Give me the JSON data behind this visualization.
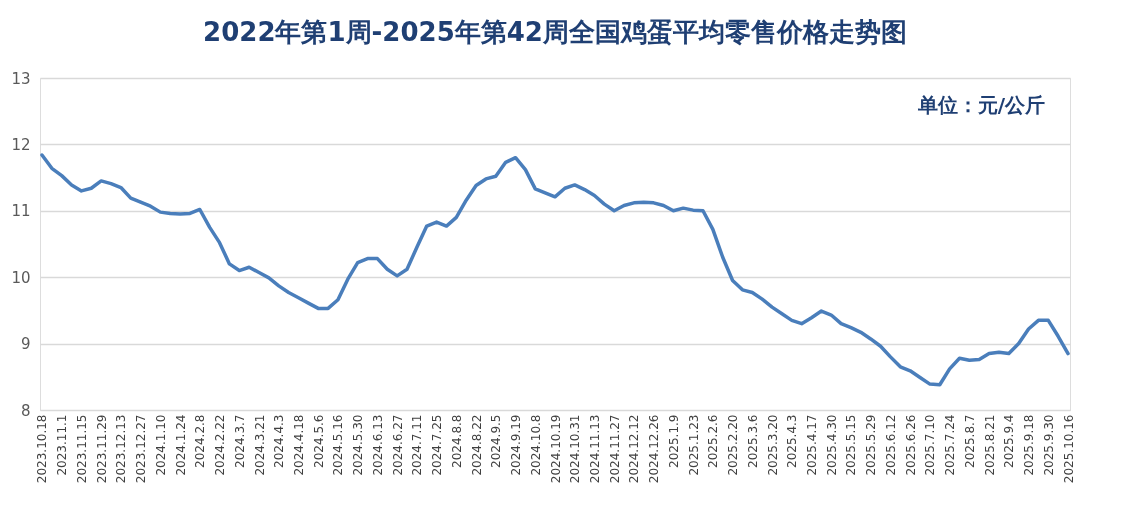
{
  "chart_data": {
    "type": "line",
    "title": "2022年第1周-2025年第42周全国鸡蛋平均零售价格走势图",
    "categories": [
      "2023.10.18",
      null,
      "2023.11.1",
      null,
      "2023.11.15",
      null,
      "2023.11.29",
      null,
      "2023.12.13",
      null,
      "2023.12.27",
      null,
      "2024.1.10",
      null,
      "2024.1.24",
      null,
      "2024.2.8",
      null,
      "2024.2.22",
      null,
      "2024.3.7",
      null,
      "2024.3.21",
      null,
      "2024.4.3",
      null,
      "2024.4.18",
      null,
      "2024.5.6",
      null,
      "2024.5.16",
      null,
      "2024.5.30",
      null,
      "2024.6.13",
      null,
      "2024.6.27",
      null,
      "2024.7.11",
      null,
      "2024.7.25",
      null,
      "2024.8.8",
      null,
      "2024.8.22",
      null,
      "2024.9.5",
      null,
      "2024.9.19",
      null,
      "2024.10.8",
      null,
      "2024.10.19",
      null,
      "2024.10.31",
      null,
      "2024.11.13",
      null,
      "2024.11.27",
      null,
      "2024.12.12",
      null,
      "2024.12.26",
      null,
      "2025.1.9",
      null,
      "2025.1.23",
      null,
      "2025.2.6",
      null,
      "2025.2.20",
      null,
      "2025.3.6",
      null,
      "2025.3.20",
      null,
      "2025.4.3",
      null,
      "2025.4.17",
      null,
      "2025.4.30",
      null,
      "2025.5.15",
      null,
      "2025.5.29",
      null,
      "2025.6.12",
      null,
      "2025.6.26",
      null,
      "2025.7.10",
      null,
      "2025.7.24",
      null,
      "2025.8.7",
      null,
      "2025.8.21",
      null,
      "2025.9.4",
      null,
      "2025.9.18",
      null,
      "2025.9.30",
      null,
      "2025.10.16"
    ],
    "series": [
      {
        "color": "#4a7ebb",
        "values": [
          11.84,
          11.64,
          11.53,
          11.39,
          11.3,
          11.34,
          11.45,
          11.41,
          11.35,
          11.19,
          11.13,
          11.07,
          10.98,
          10.96,
          10.95,
          10.96,
          11.02,
          10.75,
          10.52,
          10.2,
          10.1,
          10.15,
          10.07,
          9.99,
          9.87,
          9.77,
          9.69,
          9.61,
          9.53,
          9.53,
          9.66,
          9.97,
          10.22,
          10.28,
          10.28,
          10.12,
          10.02,
          10.12,
          10.45,
          10.77,
          10.83,
          10.77,
          10.9,
          11.16,
          11.38,
          11.48,
          11.52,
          11.73,
          11.8,
          11.62,
          11.33,
          11.27,
          11.21,
          11.34,
          11.39,
          11.32,
          11.23,
          11.1,
          11.0,
          11.08,
          11.12,
          11.13,
          11.12,
          11.08,
          11.0,
          11.04,
          11.01,
          11.0,
          10.72,
          10.3,
          9.95,
          9.81,
          9.77,
          9.67,
          9.55,
          9.45,
          9.35,
          9.3,
          9.39,
          9.49,
          9.43,
          9.3,
          9.24,
          9.17,
          9.07,
          8.96,
          8.8,
          8.65,
          8.59,
          8.49,
          8.39,
          8.38,
          8.62,
          8.78,
          8.75,
          8.76,
          8.85,
          8.87,
          8.85,
          9.0,
          9.22,
          9.35,
          9.35,
          9.11,
          8.85
        ]
      }
    ],
    "ylim": [
      8,
      13
    ],
    "yticks": [
      8,
      9,
      10,
      11,
      12,
      13
    ],
    "grid": "y",
    "marker": "none",
    "line_style": "solid",
    "annotations": [
      "单位：元/公斤"
    ]
  }
}
